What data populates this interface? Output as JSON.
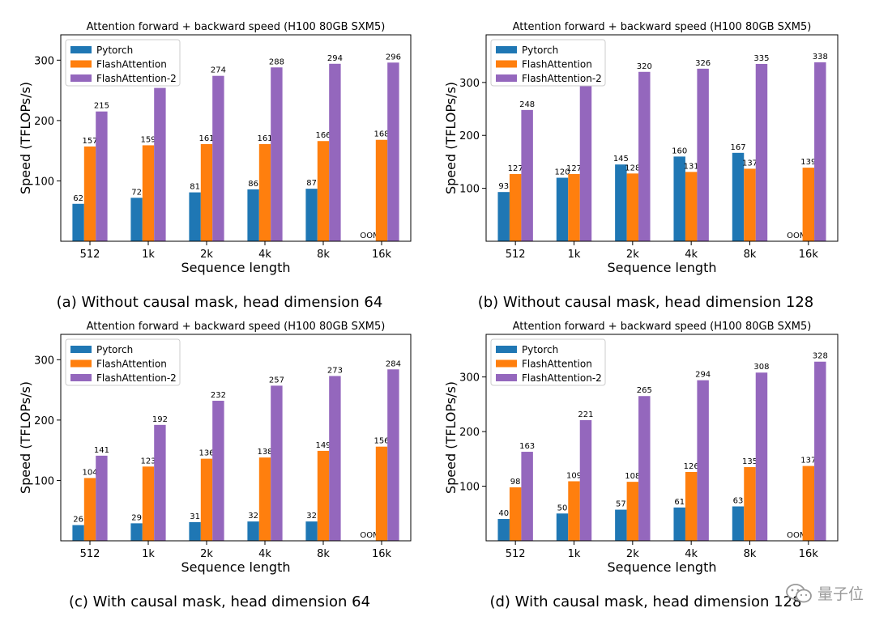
{
  "watermark": {
    "text": "量子位",
    "icon": "wechat-icon"
  },
  "colors": {
    "Pytorch": "#1f77b4",
    "FlashAttention": "#ff7f0e",
    "FlashAttention-2": "#9467bd"
  },
  "chart_data": [
    {
      "type": "bar",
      "title": "Attention forward + backward speed (H100 80GB SXM5)",
      "caption": "(a) Without causal mask, head dimension 64",
      "xlabel": "Sequence length",
      "ylabel": "Speed (TFLOPs/s)",
      "ylim": [
        0,
        342
      ],
      "yticks": [
        100,
        200,
        300
      ],
      "legend_position": "upper-left",
      "grid": false,
      "categories": [
        "512",
        "1k",
        "2k",
        "4k",
        "8k",
        "16k"
      ],
      "series": [
        {
          "name": "Pytorch",
          "values": [
            62,
            72,
            81,
            86,
            87,
            null
          ],
          "labels": [
            "62",
            "72",
            "81",
            "86",
            "87",
            "OOM"
          ]
        },
        {
          "name": "FlashAttention",
          "values": [
            157,
            159,
            161,
            161,
            166,
            168
          ],
          "labels": [
            "157",
            "159",
            "161",
            "161",
            "166",
            "168"
          ]
        },
        {
          "name": "FlashAttention-2",
          "values": [
            215,
            254,
            274,
            288,
            294,
            296
          ],
          "labels": [
            "215",
            "254",
            "274",
            "288",
            "294",
            "296"
          ]
        }
      ]
    },
    {
      "type": "bar",
      "title": "Attention forward + backward speed (H100 80GB SXM5)",
      "caption": "(b) Without causal mask, head dimension 128",
      "xlabel": "Sequence length",
      "ylabel": "Speed (TFLOPs/s)",
      "ylim": [
        0,
        390
      ],
      "yticks": [
        100,
        200,
        300
      ],
      "legend_position": "upper-left",
      "grid": false,
      "categories": [
        "512",
        "1k",
        "2k",
        "4k",
        "8k",
        "16k"
      ],
      "series": [
        {
          "name": "Pytorch",
          "values": [
            93,
            120,
            145,
            160,
            167,
            null
          ],
          "labels": [
            "93",
            "120",
            "145",
            "160",
            "167",
            "OOM"
          ]
        },
        {
          "name": "FlashAttention",
          "values": [
            127,
            127,
            128,
            131,
            137,
            139
          ],
          "labels": [
            "127",
            "127",
            "128",
            "131",
            "137",
            "139"
          ]
        },
        {
          "name": "FlashAttention-2",
          "values": [
            248,
            294,
            320,
            326,
            335,
            338
          ],
          "labels": [
            "248",
            "294",
            "320",
            "326",
            "335",
            "338"
          ]
        }
      ]
    },
    {
      "type": "bar",
      "title": "Attention forward + backward speed (H100 80GB SXM5)",
      "caption": "(c) With causal mask, head dimension 64",
      "xlabel": "Sequence length",
      "ylabel": "Speed (TFLOPs/s)",
      "ylim": [
        0,
        342
      ],
      "yticks": [
        100,
        200,
        300
      ],
      "legend_position": "upper-left",
      "grid": false,
      "categories": [
        "512",
        "1k",
        "2k",
        "4k",
        "8k",
        "16k"
      ],
      "series": [
        {
          "name": "Pytorch",
          "values": [
            26,
            29,
            31,
            32,
            32,
            null
          ],
          "labels": [
            "26",
            "29",
            "31",
            "32",
            "32",
            "OOM"
          ]
        },
        {
          "name": "FlashAttention",
          "values": [
            104,
            123,
            136,
            138,
            149,
            156
          ],
          "labels": [
            "104",
            "123",
            "136",
            "138",
            "149",
            "156"
          ]
        },
        {
          "name": "FlashAttention-2",
          "values": [
            141,
            192,
            232,
            257,
            273,
            284
          ],
          "labels": [
            "141",
            "192",
            "232",
            "257",
            "273",
            "284"
          ]
        }
      ]
    },
    {
      "type": "bar",
      "title": "Attention forward + backward speed (H100 80GB SXM5)",
      "caption": "(d) With causal mask, head dimension 128",
      "xlabel": "Sequence length",
      "ylabel": "Speed (TFLOPs/s)",
      "ylim": [
        0,
        378
      ],
      "yticks": [
        100,
        200,
        300
      ],
      "legend_position": "upper-left",
      "grid": false,
      "categories": [
        "512",
        "1k",
        "2k",
        "4k",
        "8k",
        "16k"
      ],
      "series": [
        {
          "name": "Pytorch",
          "values": [
            40,
            50,
            57,
            61,
            63,
            null
          ],
          "labels": [
            "40",
            "50",
            "57",
            "61",
            "63",
            "OOM"
          ]
        },
        {
          "name": "FlashAttention",
          "values": [
            98,
            109,
            108,
            126,
            135,
            137
          ],
          "labels": [
            "98",
            "109",
            "108",
            "126",
            "135",
            "137"
          ]
        },
        {
          "name": "FlashAttention-2",
          "values": [
            163,
            221,
            265,
            294,
            308,
            328
          ],
          "labels": [
            "163",
            "221",
            "265",
            "294",
            "308",
            "328"
          ]
        }
      ]
    }
  ]
}
